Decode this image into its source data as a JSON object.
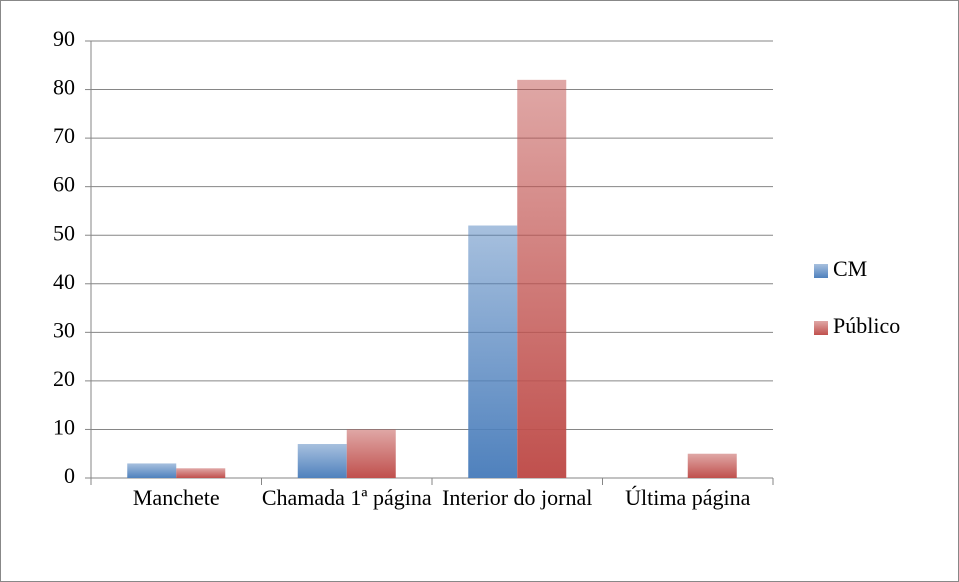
{
  "chart_data": {
    "type": "bar",
    "categories": [
      "Manchete",
      "Chamada 1ª página",
      "Interior do jornal",
      "Última página"
    ],
    "series": [
      {
        "name": "CM",
        "color": "#4f81bd",
        "values": [
          3,
          7,
          52,
          0
        ]
      },
      {
        "name": "Público",
        "color": "#c0504d",
        "values": [
          2,
          10,
          82,
          5
        ]
      }
    ],
    "ylim": [
      0,
      90
    ],
    "yticks": [
      0,
      10,
      20,
      30,
      40,
      50,
      60,
      70,
      80,
      90
    ],
    "grid": true,
    "legend": "right"
  }
}
